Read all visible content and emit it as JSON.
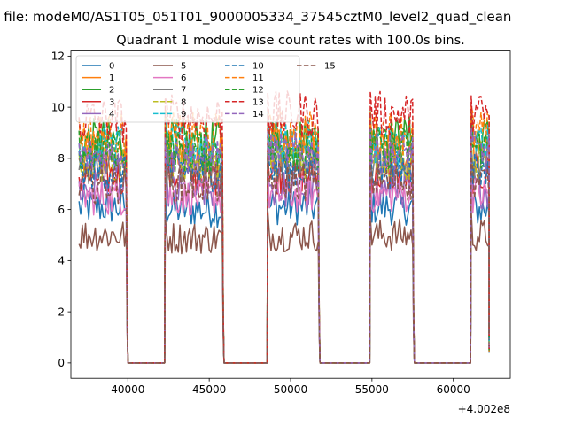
{
  "figure": {
    "suptitle": "n file: modeM0/AS1T05_051T01_9000005334_37545cztM0_level2_quad_clean"
  },
  "chart_data": {
    "type": "line",
    "title": "Quadrant 1 module wise count rates with 100.0s bins.",
    "xlabel": "",
    "ylabel": "",
    "x_offset_label": "+4.002e8",
    "xlim": [
      36500,
      63500
    ],
    "ylim": [
      -0.6,
      12.2
    ],
    "xticks": [
      40000,
      45000,
      50000,
      55000,
      60000
    ],
    "xtick_labels": [
      "40000",
      "45000",
      "50000",
      "55000",
      "60000"
    ],
    "yticks": [
      0,
      2,
      4,
      6,
      8,
      10,
      12
    ],
    "ytick_labels": [
      "0",
      "2",
      "4",
      "6",
      "8",
      "10",
      "12"
    ],
    "grid": false,
    "legend": {
      "placement": "upper-left",
      "columns": 4
    },
    "bin_seconds": 100,
    "segments": [
      {
        "start": 37000,
        "end": 39900
      },
      {
        "start": 42300,
        "end": 45800
      },
      {
        "start": 48600,
        "end": 51700
      },
      {
        "start": 54900,
        "end": 57500
      },
      {
        "start": 61100,
        "end": 62200
      }
    ],
    "gap_level": 0,
    "series": [
      {
        "name": "0",
        "color": "#1f77b4",
        "dash": "solid",
        "levels": [
          6.1,
          6.0,
          6.1,
          6.1,
          6.0
        ]
      },
      {
        "name": "1",
        "color": "#ff7f0e",
        "dash": "solid",
        "levels": [
          8.2,
          8.2,
          8.3,
          8.3,
          8.3
        ]
      },
      {
        "name": "2",
        "color": "#2ca02c",
        "dash": "solid",
        "levels": [
          8.7,
          8.7,
          8.8,
          8.8,
          8.8
        ]
      },
      {
        "name": "3",
        "color": "#d62728",
        "dash": "solid",
        "levels": [
          7.3,
          7.3,
          7.4,
          7.4,
          7.4
        ]
      },
      {
        "name": "4",
        "color": "#9467bd",
        "dash": "solid",
        "levels": [
          6.8,
          6.7,
          6.8,
          6.8,
          6.8
        ]
      },
      {
        "name": "5",
        "color": "#8c564b",
        "dash": "solid",
        "levels": [
          5.0,
          4.9,
          5.0,
          5.0,
          5.0
        ]
      },
      {
        "name": "6",
        "color": "#e377c2",
        "dash": "solid",
        "levels": [
          6.5,
          6.5,
          6.6,
          6.6,
          6.6
        ]
      },
      {
        "name": "7",
        "color": "#7f7f7f",
        "dash": "solid",
        "levels": [
          7.7,
          7.7,
          7.8,
          7.8,
          7.8
        ]
      },
      {
        "name": "8",
        "color": "#bcbd22",
        "dash": "dashed",
        "levels": [
          7.9,
          7.9,
          8.0,
          8.0,
          8.0
        ]
      },
      {
        "name": "9",
        "color": "#17becf",
        "dash": "dashed",
        "levels": [
          8.5,
          8.5,
          8.6,
          8.6,
          8.6
        ]
      },
      {
        "name": "10",
        "color": "#1f77b4",
        "dash": "dashed",
        "levels": [
          7.5,
          7.5,
          7.6,
          7.6,
          7.6
        ]
      },
      {
        "name": "11",
        "color": "#ff7f0e",
        "dash": "dashed",
        "levels": [
          8.9,
          8.9,
          9.0,
          9.0,
          9.0
        ]
      },
      {
        "name": "12",
        "color": "#2ca02c",
        "dash": "dashed",
        "levels": [
          8.3,
          8.3,
          8.4,
          8.4,
          8.4
        ]
      },
      {
        "name": "13",
        "color": "#d62728",
        "dash": "dashed",
        "levels": [
          9.5,
          9.6,
          9.7,
          9.7,
          9.7
        ]
      },
      {
        "name": "14",
        "color": "#9467bd",
        "dash": "dashed",
        "levels": [
          8.1,
          8.1,
          8.2,
          8.2,
          8.2
        ]
      },
      {
        "name": "15",
        "color": "#8c564b",
        "dash": "dashed",
        "levels": [
          7.0,
          7.0,
          7.1,
          7.1,
          7.1
        ]
      }
    ]
  }
}
